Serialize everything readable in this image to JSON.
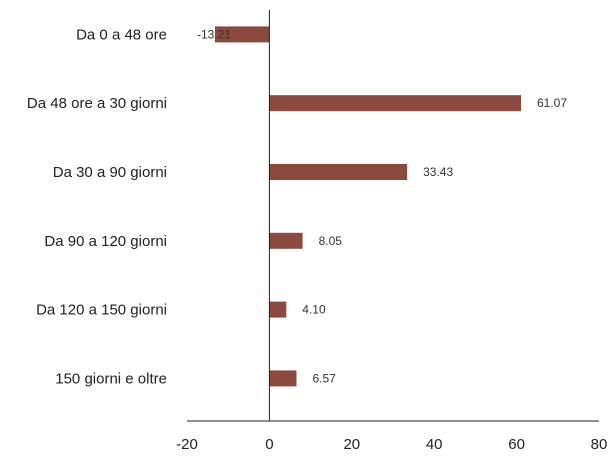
{
  "chart_data": {
    "type": "bar",
    "orientation": "horizontal",
    "categories": [
      "Da 0 a 48 ore",
      "Da 48 ore a 30 giorni",
      "Da 30 a 90 giorni",
      "Da 90 a 120 giorni",
      "Da 120 a 150 giorni",
      "150 giorni e oltre"
    ],
    "values": [
      -13.21,
      61.07,
      33.43,
      8.05,
      4.1,
      6.57
    ],
    "value_labels": [
      "-13.21",
      "61.07",
      "33.43",
      "8.05",
      "4.10",
      "6.57"
    ],
    "xlim": [
      -20,
      80
    ],
    "xticks": [
      -20,
      0,
      20,
      40,
      60,
      80
    ],
    "xtick_labels": [
      "-20",
      "0",
      "20",
      "40",
      "60",
      "80"
    ],
    "title": "",
    "xlabel": "",
    "ylabel": "",
    "grid": false,
    "legend": "none",
    "bar_color": "#8b4a40",
    "axis_color": "#222222"
  }
}
